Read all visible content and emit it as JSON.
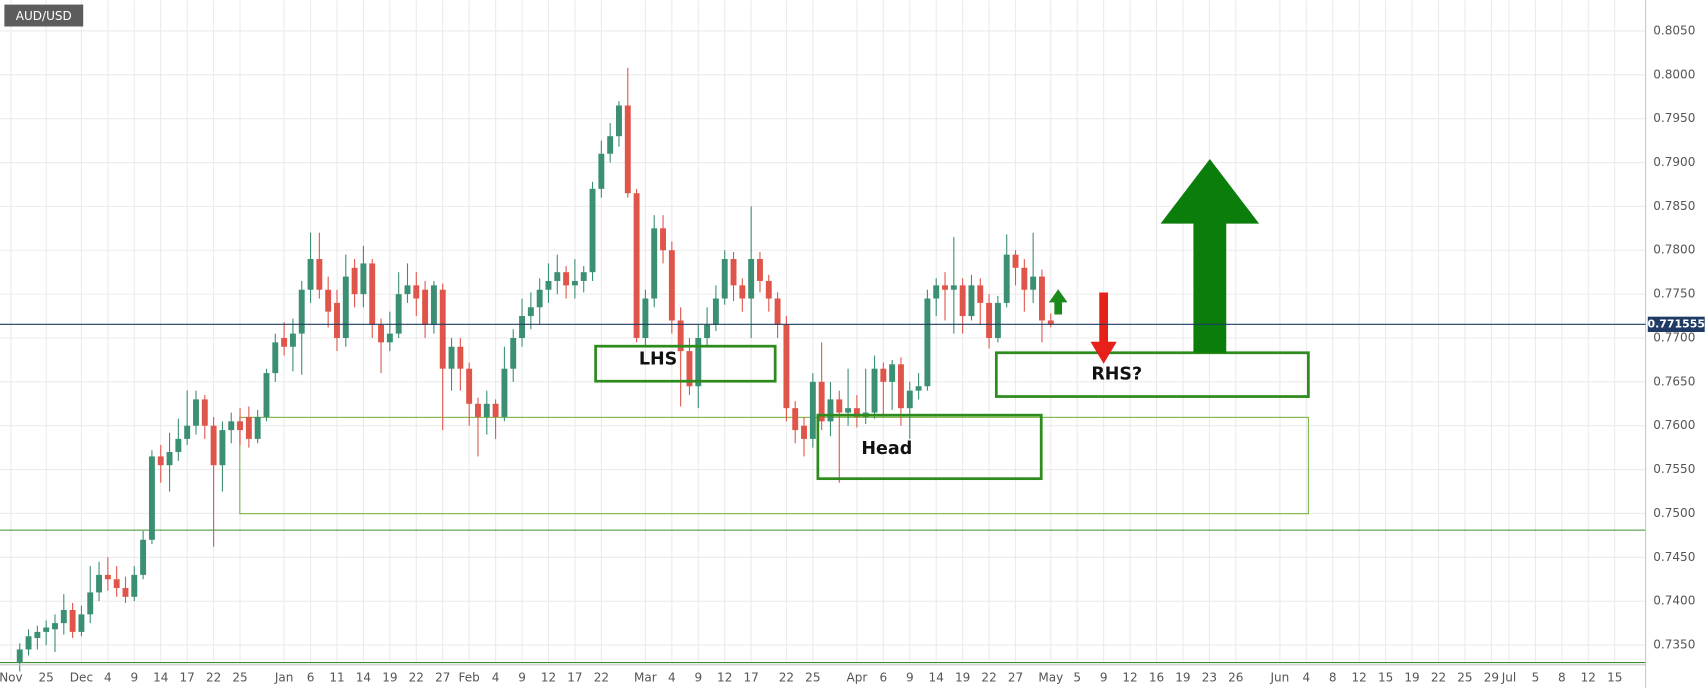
{
  "chart_data": {
    "type": "candlestick",
    "title": "AUD/USD",
    "up_color": "#3b8f72",
    "down_color": "#e0554a",
    "candles": [
      [
        0.733,
        0.7352,
        0.732,
        0.7345
      ],
      [
        0.7345,
        0.7368,
        0.7338,
        0.736
      ],
      [
        0.7358,
        0.7372,
        0.7345,
        0.7365
      ],
      [
        0.7365,
        0.7378,
        0.735,
        0.737
      ],
      [
        0.7368,
        0.7385,
        0.7342,
        0.7375
      ],
      [
        0.7375,
        0.7408,
        0.7362,
        0.739
      ],
      [
        0.739,
        0.7398,
        0.7358,
        0.7365
      ],
      [
        0.7365,
        0.7395,
        0.736,
        0.7385
      ],
      [
        0.7385,
        0.744,
        0.7375,
        0.741
      ],
      [
        0.741,
        0.7445,
        0.74,
        0.743
      ],
      [
        0.743,
        0.745,
        0.7412,
        0.7425
      ],
      [
        0.7425,
        0.744,
        0.7405,
        0.7415
      ],
      [
        0.7415,
        0.7428,
        0.7398,
        0.7405
      ],
      [
        0.7405,
        0.744,
        0.74,
        0.743
      ],
      [
        0.743,
        0.748,
        0.7425,
        0.747
      ],
      [
        0.747,
        0.7572,
        0.7465,
        0.7565
      ],
      [
        0.7565,
        0.7578,
        0.7535,
        0.7555
      ],
      [
        0.7555,
        0.7592,
        0.7525,
        0.757
      ],
      [
        0.757,
        0.7608,
        0.756,
        0.7585
      ],
      [
        0.7585,
        0.764,
        0.7578,
        0.76
      ],
      [
        0.76,
        0.764,
        0.759,
        0.763
      ],
      [
        0.763,
        0.7635,
        0.7585,
        0.76
      ],
      [
        0.76,
        0.761,
        0.7462,
        0.7555
      ],
      [
        0.7555,
        0.7605,
        0.7525,
        0.7595
      ],
      [
        0.7595,
        0.7615,
        0.758,
        0.7605
      ],
      [
        0.7605,
        0.762,
        0.7578,
        0.7595
      ],
      [
        0.761,
        0.7622,
        0.7575,
        0.7585
      ],
      [
        0.7585,
        0.7618,
        0.758,
        0.761
      ],
      [
        0.761,
        0.7665,
        0.7605,
        0.766
      ],
      [
        0.766,
        0.7705,
        0.765,
        0.7695
      ],
      [
        0.77,
        0.7718,
        0.768,
        0.769
      ],
      [
        0.769,
        0.7722,
        0.7662,
        0.7705
      ],
      [
        0.7705,
        0.7765,
        0.7658,
        0.7755
      ],
      [
        0.7755,
        0.782,
        0.774,
        0.779
      ],
      [
        0.779,
        0.782,
        0.7745,
        0.7755
      ],
      [
        0.7755,
        0.777,
        0.7712,
        0.773
      ],
      [
        0.774,
        0.7755,
        0.7685,
        0.77
      ],
      [
        0.77,
        0.7795,
        0.769,
        0.777
      ],
      [
        0.778,
        0.779,
        0.7735,
        0.775
      ],
      [
        0.775,
        0.7805,
        0.7735,
        0.7785
      ],
      [
        0.7785,
        0.779,
        0.77,
        0.7715
      ],
      [
        0.7715,
        0.7722,
        0.766,
        0.7695
      ],
      [
        0.7695,
        0.773,
        0.7685,
        0.7705
      ],
      [
        0.7705,
        0.7775,
        0.77,
        0.775
      ],
      [
        0.775,
        0.7785,
        0.774,
        0.776
      ],
      [
        0.776,
        0.7775,
        0.7725,
        0.7745
      ],
      [
        0.7755,
        0.7765,
        0.77,
        0.7715
      ],
      [
        0.7715,
        0.7765,
        0.7705,
        0.776
      ],
      [
        0.7755,
        0.7762,
        0.7595,
        0.7665
      ],
      [
        0.7665,
        0.77,
        0.764,
        0.769
      ],
      [
        0.769,
        0.77,
        0.764,
        0.7665
      ],
      [
        0.7665,
        0.7672,
        0.76,
        0.7625
      ],
      [
        0.7625,
        0.7632,
        0.7565,
        0.761
      ],
      [
        0.761,
        0.764,
        0.759,
        0.7625
      ],
      [
        0.7625,
        0.763,
        0.7585,
        0.761
      ],
      [
        0.761,
        0.769,
        0.7605,
        0.7665
      ],
      [
        0.7665,
        0.771,
        0.765,
        0.77
      ],
      [
        0.77,
        0.7745,
        0.769,
        0.7725
      ],
      [
        0.7725,
        0.7752,
        0.771,
        0.7735
      ],
      [
        0.7735,
        0.7768,
        0.7715,
        0.7755
      ],
      [
        0.7755,
        0.7785,
        0.774,
        0.7765
      ],
      [
        0.7765,
        0.7795,
        0.775,
        0.7775
      ],
      [
        0.7775,
        0.7782,
        0.7745,
        0.776
      ],
      [
        0.776,
        0.779,
        0.7745,
        0.7765
      ],
      [
        0.7765,
        0.7782,
        0.7752,
        0.7775
      ],
      [
        0.7775,
        0.7878,
        0.7765,
        0.787
      ],
      [
        0.787,
        0.7925,
        0.786,
        0.791
      ],
      [
        0.791,
        0.7945,
        0.79,
        0.793
      ],
      [
        0.793,
        0.797,
        0.7918,
        0.7965
      ],
      [
        0.7965,
        0.8008,
        0.786,
        0.7865
      ],
      [
        0.7865,
        0.787,
        0.7695,
        0.77
      ],
      [
        0.77,
        0.7755,
        0.769,
        0.7745
      ],
      [
        0.7745,
        0.784,
        0.7735,
        0.7825
      ],
      [
        0.7825,
        0.784,
        0.7785,
        0.78
      ],
      [
        0.78,
        0.781,
        0.7705,
        0.772
      ],
      [
        0.772,
        0.7735,
        0.7622,
        0.7685
      ],
      [
        0.7685,
        0.77,
        0.7635,
        0.7645
      ],
      [
        0.7645,
        0.7715,
        0.762,
        0.77
      ],
      [
        0.77,
        0.7735,
        0.769,
        0.7715
      ],
      [
        0.7715,
        0.776,
        0.7708,
        0.7745
      ],
      [
        0.7745,
        0.78,
        0.7738,
        0.779
      ],
      [
        0.779,
        0.7798,
        0.7742,
        0.776
      ],
      [
        0.776,
        0.7768,
        0.773,
        0.7745
      ],
      [
        0.7745,
        0.785,
        0.77,
        0.779
      ],
      [
        0.779,
        0.7798,
        0.7752,
        0.7765
      ],
      [
        0.7765,
        0.7772,
        0.773,
        0.7745
      ],
      [
        0.7745,
        0.7752,
        0.77,
        0.7715
      ],
      [
        0.7715,
        0.7725,
        0.7605,
        0.762
      ],
      [
        0.762,
        0.7628,
        0.758,
        0.7595
      ],
      [
        0.76,
        0.761,
        0.7565,
        0.7585
      ],
      [
        0.7585,
        0.766,
        0.7575,
        0.765
      ],
      [
        0.765,
        0.7695,
        0.7595,
        0.7605
      ],
      [
        0.7605,
        0.765,
        0.7588,
        0.763
      ],
      [
        0.763,
        0.764,
        0.7535,
        0.7615
      ],
      [
        0.7615,
        0.7665,
        0.76,
        0.762
      ],
      [
        0.762,
        0.7635,
        0.7598,
        0.761
      ],
      [
        0.761,
        0.7665,
        0.7602,
        0.7615
      ],
      [
        0.7615,
        0.768,
        0.7608,
        0.7665
      ],
      [
        0.7665,
        0.7672,
        0.761,
        0.765
      ],
      [
        0.765,
        0.7675,
        0.7618,
        0.767
      ],
      [
        0.767,
        0.7678,
        0.76,
        0.762
      ],
      [
        0.762,
        0.765,
        0.7585,
        0.764
      ],
      [
        0.764,
        0.766,
        0.763,
        0.7645
      ],
      [
        0.7645,
        0.7755,
        0.764,
        0.7745
      ],
      [
        0.7745,
        0.7768,
        0.7725,
        0.776
      ],
      [
        0.776,
        0.7775,
        0.772,
        0.7755
      ],
      [
        0.7755,
        0.7815,
        0.7705,
        0.776
      ],
      [
        0.776,
        0.7768,
        0.7705,
        0.7725
      ],
      [
        0.7725,
        0.7772,
        0.772,
        0.776
      ],
      [
        0.776,
        0.7768,
        0.7715,
        0.774
      ],
      [
        0.774,
        0.775,
        0.7688,
        0.77
      ],
      [
        0.77,
        0.7748,
        0.7695,
        0.774
      ],
      [
        0.774,
        0.7818,
        0.7735,
        0.7795
      ],
      [
        0.7795,
        0.78,
        0.776,
        0.778
      ],
      [
        0.778,
        0.779,
        0.773,
        0.7755
      ],
      [
        0.7755,
        0.782,
        0.774,
        0.777
      ],
      [
        0.777,
        0.7778,
        0.7695,
        0.772
      ],
      [
        0.772,
        0.7728,
        0.7712,
        0.7716
      ]
    ],
    "last_price": 0.771555,
    "last_price_color": "#1f3b63",
    "annotations": [
      "LHS",
      "Head",
      "RHS?"
    ],
    "xlim": [
      -2.24,
      184.5
    ],
    "ylim": [
      0.733,
      0.8085
    ],
    "grid": true,
    "xticks": [
      {
        "value": -1,
        "label": "Nov"
      },
      {
        "value": 3,
        "label": "25"
      },
      {
        "value": 7,
        "label": "Dec"
      },
      {
        "value": 10,
        "label": "4"
      },
      {
        "value": 13,
        "label": "9"
      },
      {
        "value": 16,
        "label": "14"
      },
      {
        "value": 19,
        "label": "17"
      },
      {
        "value": 22,
        "label": "22"
      },
      {
        "value": 25,
        "label": "25"
      },
      {
        "value": 30,
        "label": "Jan"
      },
      {
        "value": 33,
        "label": "6"
      },
      {
        "value": 36,
        "label": "11"
      },
      {
        "value": 39,
        "label": "14"
      },
      {
        "value": 42,
        "label": "19"
      },
      {
        "value": 45,
        "label": "22"
      },
      {
        "value": 48,
        "label": "27"
      },
      {
        "value": 51,
        "label": "Feb"
      },
      {
        "value": 54,
        "label": "4"
      },
      {
        "value": 57,
        "label": "9"
      },
      {
        "value": 60,
        "label": "12"
      },
      {
        "value": 63,
        "label": "17"
      },
      {
        "value": 66,
        "label": "22"
      },
      {
        "value": 71,
        "label": "Mar"
      },
      {
        "value": 74,
        "label": "4"
      },
      {
        "value": 77,
        "label": "9"
      },
      {
        "value": 80,
        "label": "12"
      },
      {
        "value": 83,
        "label": "17"
      },
      {
        "value": 87,
        "label": "22"
      },
      {
        "value": 90,
        "label": "25"
      },
      {
        "value": 95,
        "label": "Apr"
      },
      {
        "value": 98,
        "label": "6"
      },
      {
        "value": 101,
        "label": "9"
      },
      {
        "value": 104,
        "label": "14"
      },
      {
        "value": 107,
        "label": "19"
      },
      {
        "value": 110,
        "label": "22"
      },
      {
        "value": 113,
        "label": "27"
      },
      {
        "value": 117,
        "label": "May"
      },
      {
        "value": 120,
        "label": "5"
      },
      {
        "value": 123,
        "label": "9"
      },
      {
        "value": 126,
        "label": "12"
      },
      {
        "value": 129,
        "label": "16"
      },
      {
        "value": 132,
        "label": "19"
      },
      {
        "value": 135,
        "label": "23"
      },
      {
        "value": 138,
        "label": "26"
      },
      {
        "value": 143,
        "label": "Jun"
      },
      {
        "value": 146,
        "label": "4"
      },
      {
        "value": 149,
        "label": "8"
      },
      {
        "value": 152,
        "label": "12"
      },
      {
        "value": 155,
        "label": "15"
      },
      {
        "value": 158,
        "label": "19"
      },
      {
        "value": 161,
        "label": "22"
      },
      {
        "value": 164,
        "label": "25"
      },
      {
        "value": 167,
        "label": "29"
      },
      {
        "value": 169,
        "label": "Jul"
      },
      {
        "value": 172,
        "label": "5"
      },
      {
        "value": 175,
        "label": "8"
      },
      {
        "value": 178,
        "label": "12"
      },
      {
        "value": 181,
        "label": "15"
      }
    ],
    "yticks": [
      {
        "value": 0.735,
        "label": "0.7350"
      },
      {
        "value": 0.74,
        "label": "0.7400"
      },
      {
        "value": 0.745,
        "label": "0.7450"
      },
      {
        "value": 0.75,
        "label": "0.7500"
      },
      {
        "value": 0.755,
        "label": "0.7550"
      },
      {
        "value": 0.76,
        "label": "0.7600"
      },
      {
        "value": 0.765,
        "label": "0.7650"
      },
      {
        "value": 0.77,
        "label": "0.7700"
      },
      {
        "value": 0.775,
        "label": "0.7750"
      },
      {
        "value": 0.78,
        "label": "0.7800"
      },
      {
        "value": 0.785,
        "label": "0.7850"
      },
      {
        "value": 0.79,
        "label": "0.7900"
      },
      {
        "value": 0.795,
        "label": "0.7950"
      },
      {
        "value": 0.8,
        "label": "0.8000"
      },
      {
        "value": 0.805,
        "label": "0.8050"
      }
    ]
  }
}
